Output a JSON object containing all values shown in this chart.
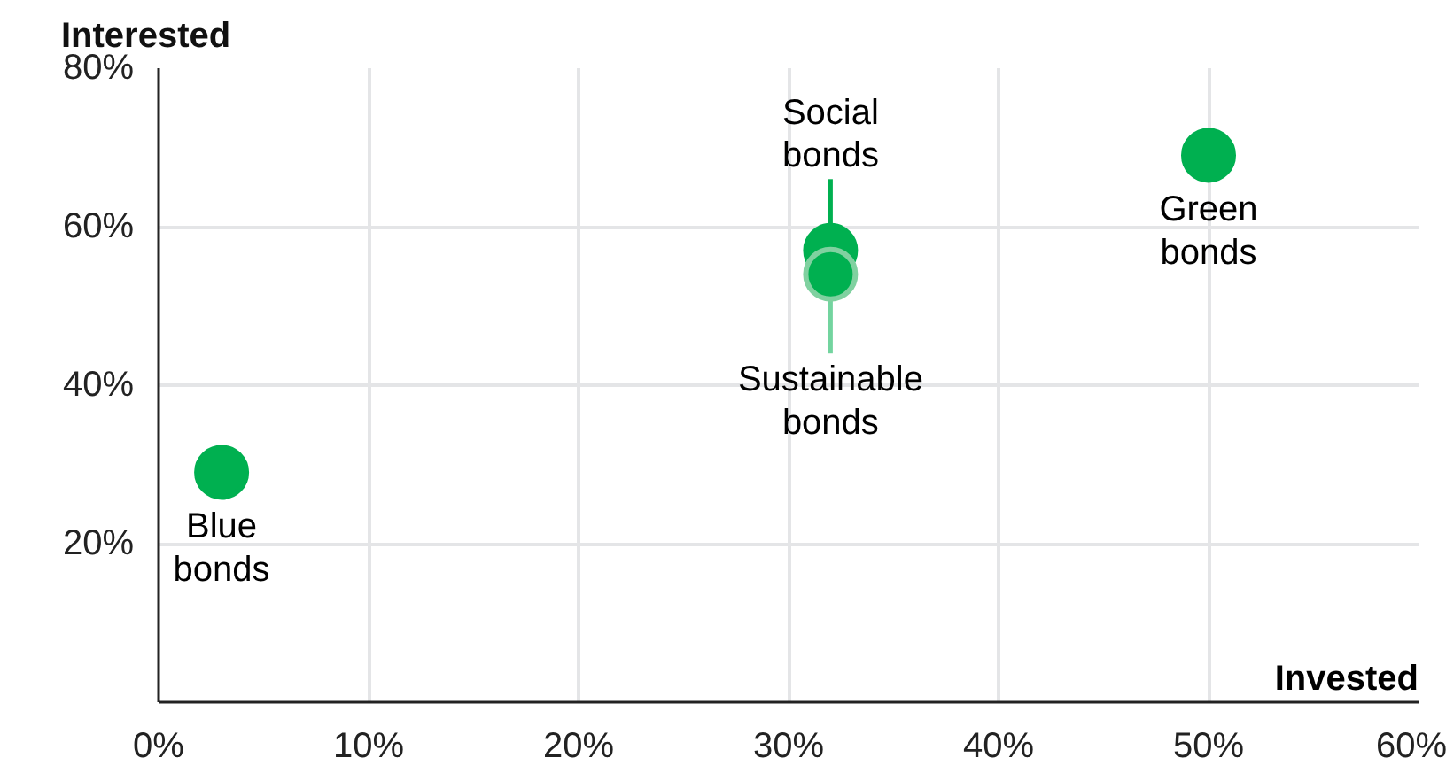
{
  "chart_data": {
    "type": "scatter",
    "xlabel": "Invested",
    "ylabel": "Interested",
    "xlim": [
      0,
      60
    ],
    "ylim": [
      0,
      80
    ],
    "xticks": [
      {
        "value": 0,
        "label": "0%"
      },
      {
        "value": 10,
        "label": "10%"
      },
      {
        "value": 20,
        "label": "20%"
      },
      {
        "value": 30,
        "label": "30%"
      },
      {
        "value": 40,
        "label": "40%"
      },
      {
        "value": 50,
        "label": "50%"
      },
      {
        "value": 60,
        "label": "60%"
      }
    ],
    "yticks": [
      {
        "value": 20,
        "label": "20%"
      },
      {
        "value": 40,
        "label": "40%"
      },
      {
        "value": 60,
        "label": "60%"
      },
      {
        "value": 80,
        "label": "80%"
      }
    ],
    "grid": true,
    "marker": "circle",
    "series": [
      {
        "name": "Blue bonds",
        "color": "#00b050",
        "x": [
          3
        ],
        "values": [
          29
        ]
      },
      {
        "name": "Green bonds",
        "color": "#00b050",
        "x": [
          50
        ],
        "values": [
          69
        ]
      },
      {
        "name": "Social bonds",
        "color": "#00b050",
        "x": [
          32
        ],
        "values": [
          57
        ]
      },
      {
        "name": "Sustainable bonds",
        "color": "#00b050",
        "x": [
          32
        ],
        "values": [
          54
        ]
      }
    ]
  }
}
